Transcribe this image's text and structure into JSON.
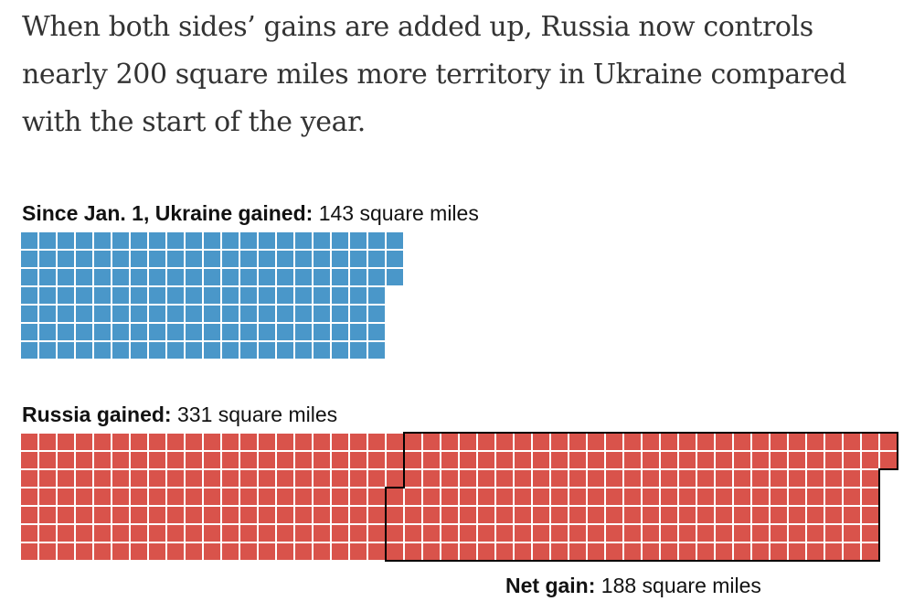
{
  "headline": "When both sides’ gains are added up, Russia now controls nearly 200 square miles more territory in Ukraine compared with the start of the year.",
  "chart_data": {
    "type": "waffle",
    "unit": "square miles",
    "series": [
      {
        "name": "Ukraine",
        "label_bold": "Since Jan. 1, Ukraine gained:",
        "label_value": "143 square miles",
        "value": 143,
        "color": "#4a97c9"
      },
      {
        "name": "Russia",
        "label_bold": "Russia gained:",
        "label_value": "331 square miles",
        "value": 331,
        "color": "#d9534b"
      }
    ],
    "net": {
      "label_bold": "Net gain:",
      "label_value": "188 square miles",
      "value": 188
    }
  }
}
